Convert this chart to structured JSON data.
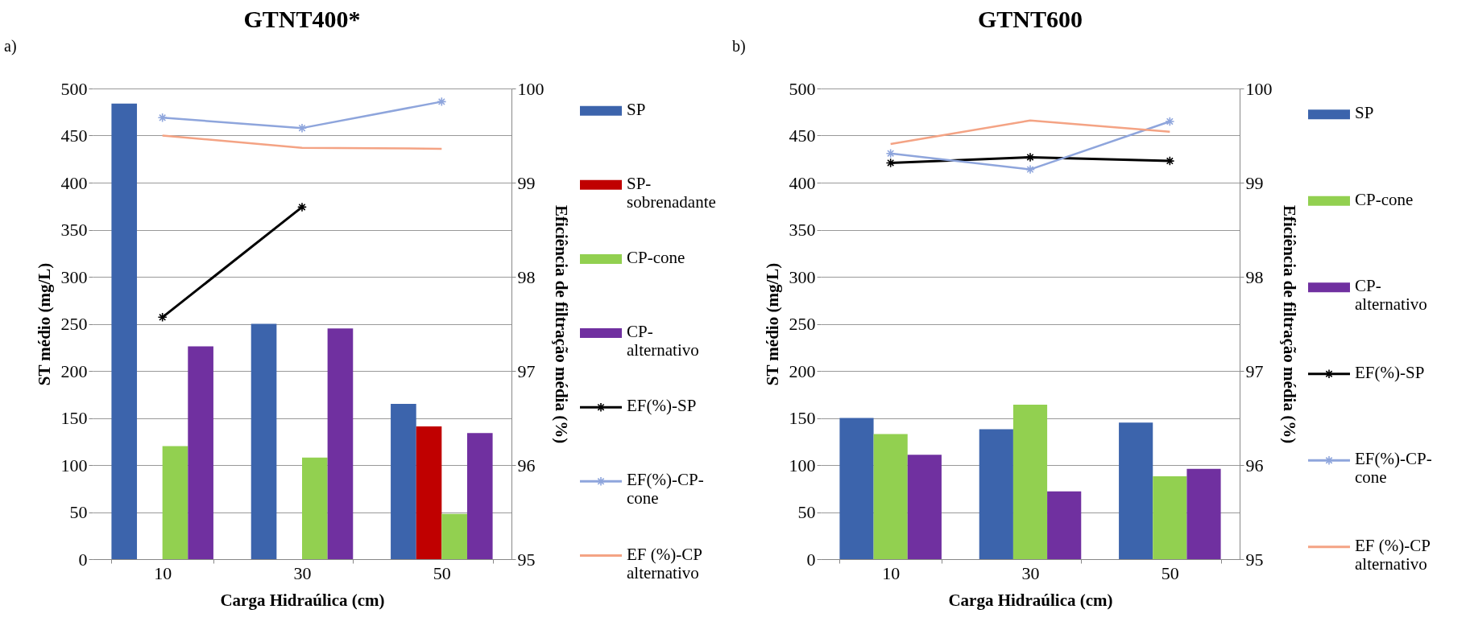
{
  "chart_data": [
    {
      "type": "bar",
      "title": "GTNT400*",
      "xlabel": "Carga Hidraúlica (cm)",
      "ylabel": "ST médio (mg/L)",
      "y2label": "Eficiência de filtração média (%)",
      "annotations": [
        "a)"
      ],
      "categories": [
        "10",
        "30",
        "50"
      ],
      "ylim": [
        0,
        500
      ],
      "yticks": [
        0,
        50,
        100,
        150,
        200,
        250,
        300,
        350,
        400,
        450,
        500
      ],
      "y2lim": [
        95,
        100
      ],
      "y2ticks": [
        95,
        96,
        97,
        98,
        99,
        100
      ],
      "grid": "y",
      "legend": "right",
      "series": [
        {
          "name": "SP",
          "color": "#3c64ac",
          "values": [
            484,
            250,
            165
          ]
        },
        {
          "name": "SP-sobrenadante",
          "color": "#c00000",
          "values": [
            null,
            null,
            141
          ]
        },
        {
          "name": "CP-cone",
          "color": "#92d050",
          "values": [
            120,
            108,
            48
          ]
        },
        {
          "name": "CP-alternativo",
          "color": "#7030a0",
          "values": [
            226,
            245,
            134
          ]
        },
        {
          "name": "EF(%)-SP",
          "type": "line",
          "axis": "y2",
          "marker": "cross",
          "color": "#000000",
          "values": [
            97.57,
            98.74,
            null
          ]
        },
        {
          "name": "EF(%)-CP-cone",
          "type": "line",
          "axis": "y2",
          "marker": "cross",
          "color": "#8ea5dc",
          "values": [
            99.69,
            99.58,
            99.86
          ]
        },
        {
          "name": "EF (%)-CP alternativo",
          "type": "line",
          "axis": "y2",
          "color": "#f4a384",
          "values": [
            99.5,
            99.37,
            99.36
          ]
        }
      ]
    },
    {
      "type": "bar",
      "title": "GTNT600",
      "xlabel": "Carga Hidraúlica (cm)",
      "ylabel": "ST médio (mg/L)",
      "y2label": "Eficiência de filtração média (%)",
      "annotations": [
        "b)"
      ],
      "categories": [
        "10",
        "30",
        "50"
      ],
      "ylim": [
        0,
        500
      ],
      "yticks": [
        0,
        50,
        100,
        150,
        200,
        250,
        300,
        350,
        400,
        450,
        500
      ],
      "y2lim": [
        95,
        100
      ],
      "y2ticks": [
        95,
        96,
        97,
        98,
        99,
        100
      ],
      "grid": "y",
      "legend": "right",
      "series": [
        {
          "name": "SP",
          "color": "#3c64ac",
          "values": [
            150,
            138,
            145
          ]
        },
        {
          "name": "CP-cone",
          "color": "#92d050",
          "values": [
            133,
            164,
            88
          ]
        },
        {
          "name": "CP-alternativo",
          "color": "#7030a0",
          "values": [
            111,
            72,
            96
          ]
        },
        {
          "name": "EF(%)-SP",
          "type": "line",
          "axis": "y2",
          "marker": "cross",
          "color": "#000000",
          "values": [
            99.21,
            99.27,
            99.23
          ]
        },
        {
          "name": "EF(%)-CP-cone",
          "type": "line",
          "axis": "y2",
          "marker": "cross",
          "color": "#8ea5dc",
          "values": [
            99.31,
            99.14,
            99.65
          ]
        },
        {
          "name": "EF (%)-CP alternativo",
          "type": "line",
          "axis": "y2",
          "color": "#f4a384",
          "values": [
            99.41,
            99.66,
            99.54
          ]
        }
      ]
    }
  ]
}
